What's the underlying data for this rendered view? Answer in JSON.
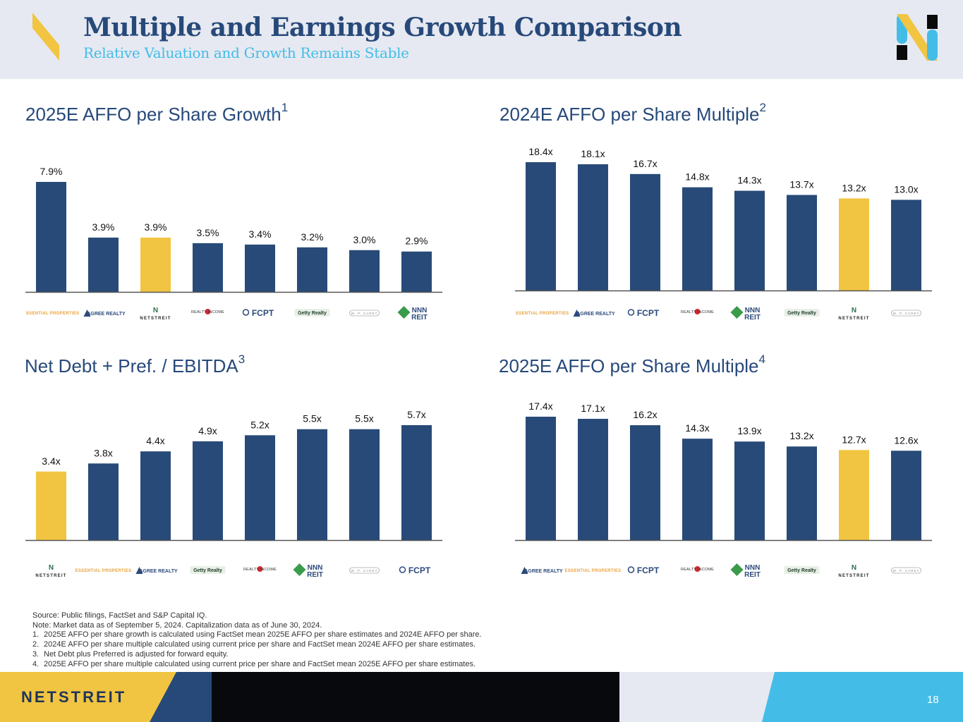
{
  "header": {
    "title": "Multiple and Earnings Growth Comparison",
    "subtitle": "Relative Valuation and Growth Remains Stable"
  },
  "colors": {
    "navy": "#284a78",
    "gold": "#f1c541",
    "sky": "#43bde8",
    "dark": "#08090d",
    "pale": "#e6e9f1"
  },
  "company_logos": {
    "EPRT": "ESSENTIAL PROPERTIES",
    "ADC": "AGREE REALTY",
    "NTST": "NETSTREIT",
    "O": "REALTY INCOME",
    "FCPT": "FCPT",
    "GTY": "Getty Realty",
    "WPC": "W. P. CAREY",
    "NNN": "NNN REIT"
  },
  "chart_data": [
    {
      "type": "bar",
      "title": "2025E AFFO per Share Growth",
      "footnote": "1",
      "categories": [
        "EPRT",
        "ADC",
        "NTST",
        "O",
        "FCPT",
        "GTY",
        "WPC",
        "NNN"
      ],
      "values": [
        7.9,
        3.9,
        3.9,
        3.5,
        3.4,
        3.2,
        3.0,
        2.9
      ],
      "labels": [
        "7.9%",
        "3.9%",
        "3.9%",
        "3.5%",
        "3.4%",
        "3.2%",
        "3.0%",
        "2.9%"
      ],
      "highlight": "NTST",
      "ylim": [
        0,
        9
      ]
    },
    {
      "type": "bar",
      "title": "2024E AFFO per Share Multiple",
      "footnote": "2",
      "categories": [
        "EPRT",
        "ADC",
        "FCPT",
        "O",
        "NNN",
        "GTY",
        "NTST",
        "WPC"
      ],
      "values": [
        18.4,
        18.1,
        16.7,
        14.8,
        14.3,
        13.7,
        13.2,
        13.0
      ],
      "labels": [
        "18.4x",
        "18.1x",
        "16.7x",
        "14.8x",
        "14.3x",
        "13.7x",
        "13.2x",
        "13.0x"
      ],
      "highlight": "NTST",
      "ylim": [
        0,
        20
      ]
    },
    {
      "type": "bar",
      "title": "Net Debt + Pref. / EBITDA",
      "footnote": "3",
      "categories": [
        "NTST",
        "EPRT",
        "ADC",
        "GTY",
        "O",
        "NNN",
        "WPC",
        "FCPT"
      ],
      "values": [
        3.4,
        3.8,
        4.4,
        4.9,
        5.2,
        5.5,
        5.5,
        5.7
      ],
      "labels": [
        "3.4x",
        "3.8x",
        "4.4x",
        "4.9x",
        "5.2x",
        "5.5x",
        "5.5x",
        "5.7x"
      ],
      "highlight": "NTST",
      "ylim": [
        0,
        6.5
      ]
    },
    {
      "type": "bar",
      "title": "2025E AFFO per Share Multiple",
      "footnote": "4",
      "categories": [
        "ADC",
        "EPRT",
        "FCPT",
        "O",
        "NNN",
        "GTY",
        "NTST",
        "WPC"
      ],
      "values": [
        17.4,
        17.1,
        16.2,
        14.3,
        13.9,
        13.2,
        12.7,
        12.6
      ],
      "labels": [
        "17.4x",
        "17.1x",
        "16.2x",
        "14.3x",
        "13.9x",
        "13.2x",
        "12.7x",
        "12.6x"
      ],
      "highlight": "NTST",
      "ylim": [
        0,
        19
      ]
    }
  ],
  "notes": {
    "source": "Source: Public filings, FactSet and S&P Capital IQ.",
    "note": "Note: Market data as of September 5, 2024. Capitalization data as of June 30, 2024.",
    "items": [
      {
        "num": "1.",
        "text": "2025E AFFO per share growth is calculated using FactSet mean 2025E AFFO per share estimates and 2024E AFFO per share."
      },
      {
        "num": "2.",
        "text": "2024E AFFO per share multiple calculated using current price per share and FactSet mean 2024E AFFO per share estimates."
      },
      {
        "num": "3.",
        "text": "Net Debt plus Preferred is adjusted for forward equity."
      },
      {
        "num": "4.",
        "text": "2025E AFFO per share multiple calculated using current price per share and FactSet mean 2025E AFFO per share estimates."
      }
    ]
  },
  "footer": {
    "brand": "NETSTREIT",
    "page_number": "18"
  }
}
